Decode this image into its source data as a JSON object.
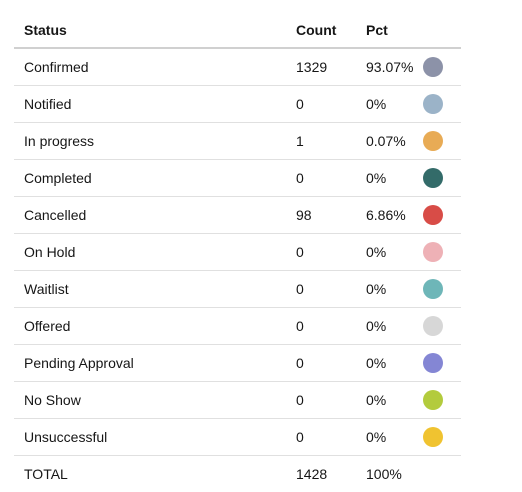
{
  "table": {
    "headers": {
      "status": "Status",
      "count": "Count",
      "pct": "Pct"
    },
    "rows": [
      {
        "status": "Confirmed",
        "count": "1329",
        "pct": "93.07%",
        "color": "#8c92a8"
      },
      {
        "status": "Notified",
        "count": "0",
        "pct": "0%",
        "color": "#9bb3c8"
      },
      {
        "status": "In progress",
        "count": "1",
        "pct": "0.07%",
        "color": "#e8ab55"
      },
      {
        "status": "Completed",
        "count": "0",
        "pct": "0%",
        "color": "#336b69"
      },
      {
        "status": "Cancelled",
        "count": "98",
        "pct": "6.86%",
        "color": "#d84c47"
      },
      {
        "status": "On Hold",
        "count": "0",
        "pct": "0%",
        "color": "#eeb1b6"
      },
      {
        "status": "Waitlist",
        "count": "0",
        "pct": "0%",
        "color": "#6eb6b8"
      },
      {
        "status": "Offered",
        "count": "0",
        "pct": "0%",
        "color": "#d7d7d7"
      },
      {
        "status": "Pending Approval",
        "count": "0",
        "pct": "0%",
        "color": "#8486d4"
      },
      {
        "status": "No Show",
        "count": "0",
        "pct": "0%",
        "color": "#b3cb3d"
      },
      {
        "status": "Unsuccessful",
        "count": "0",
        "pct": "0%",
        "color": "#f0c330"
      }
    ],
    "total": {
      "status": "TOTAL",
      "count": "1428",
      "pct": "100%"
    }
  }
}
